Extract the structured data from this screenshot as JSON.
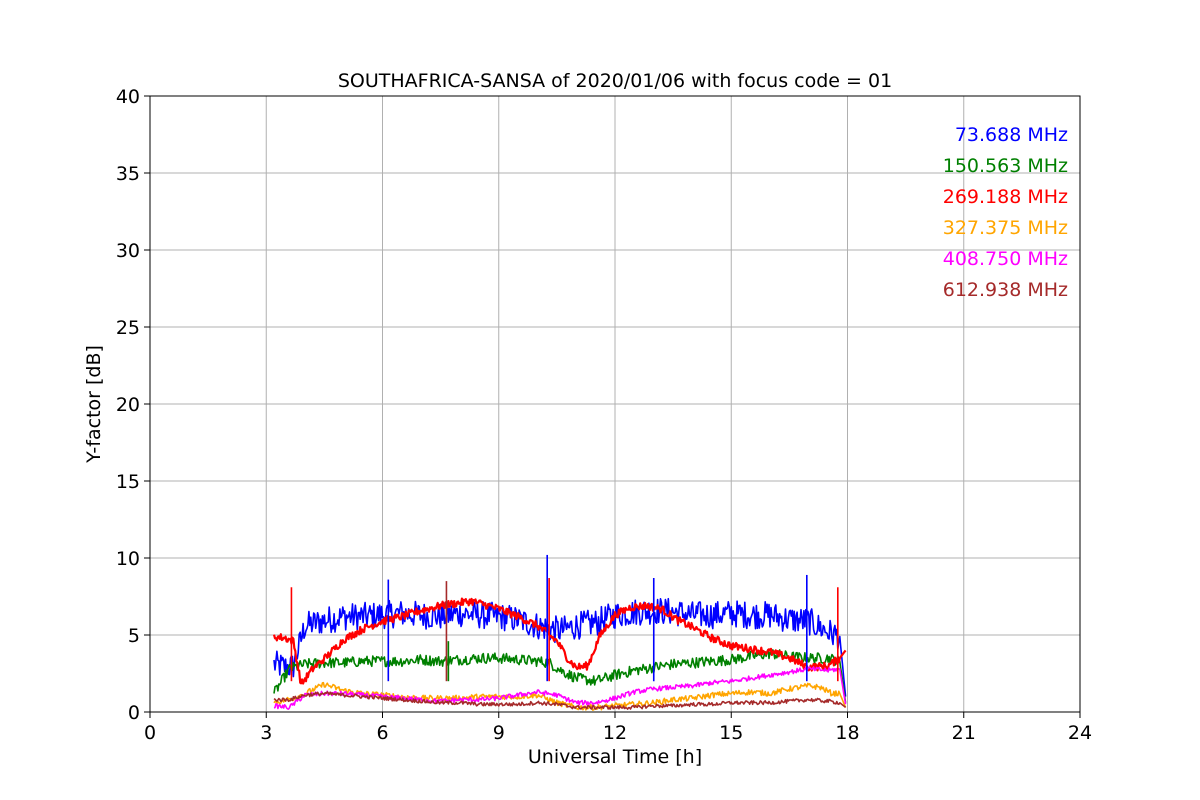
{
  "chart_data": {
    "type": "line",
    "title": "SOUTHAFRICA-SANSA of 2020/01/06 with focus code = 01",
    "xlabel": "Universal Time [h]",
    "ylabel": "Y-factor [dB]",
    "xlim": [
      0,
      24
    ],
    "ylim": [
      0,
      40
    ],
    "xticks": [
      0,
      3,
      6,
      9,
      12,
      15,
      18,
      21,
      24
    ],
    "yticks": [
      0,
      5,
      10,
      15,
      20,
      25,
      30,
      35,
      40
    ],
    "grid": true,
    "legend_placement": "top-right",
    "series": [
      {
        "name": "73.688 MHz",
        "color": "#0000ff",
        "x": [
          3.2,
          3.5,
          3.7,
          4.0,
          4.3,
          4.6,
          5.0,
          5.5,
          6.0,
          6.5,
          7.0,
          7.5,
          8.0,
          8.5,
          9.0,
          9.5,
          10.0,
          10.3,
          10.6,
          11.0,
          11.5,
          12.0,
          12.5,
          13.0,
          13.5,
          14.0,
          14.5,
          15.0,
          15.5,
          16.0,
          16.5,
          17.0,
          17.5,
          17.8,
          17.95
        ],
        "y": [
          3.1,
          2.9,
          3.0,
          5.6,
          5.8,
          6.0,
          6.2,
          6.2,
          6.3,
          6.4,
          6.3,
          6.2,
          6.4,
          6.3,
          6.2,
          6.0,
          5.6,
          5.4,
          5.3,
          5.6,
          5.8,
          6.3,
          6.5,
          6.6,
          6.5,
          6.3,
          6.3,
          6.4,
          6.3,
          6.3,
          6.0,
          5.9,
          5.2,
          4.9,
          1.0
        ]
      },
      {
        "name": "150.563 MHz",
        "color": "#008000",
        "x": [
          3.2,
          3.6,
          4.0,
          4.5,
          5.0,
          5.5,
          6.0,
          6.5,
          7.0,
          7.5,
          8.0,
          8.5,
          9.0,
          9.5,
          10.0,
          10.3,
          10.6,
          11.0,
          11.5,
          12.0,
          12.5,
          13.0,
          13.5,
          14.0,
          14.5,
          15.0,
          15.5,
          16.0,
          16.5,
          17.0,
          17.5,
          17.8,
          17.95
        ],
        "y": [
          1.2,
          2.8,
          3.1,
          3.2,
          3.2,
          3.3,
          3.3,
          3.3,
          3.4,
          3.3,
          3.4,
          3.5,
          3.5,
          3.4,
          3.3,
          3.2,
          2.7,
          2.2,
          2.0,
          2.4,
          2.7,
          2.9,
          3.1,
          3.2,
          3.3,
          3.4,
          3.6,
          3.8,
          3.6,
          3.5,
          3.5,
          3.3,
          0.6
        ]
      },
      {
        "name": "269.188 MHz",
        "color": "#ff0000",
        "x": [
          3.2,
          3.5,
          3.7,
          3.9,
          4.2,
          4.6,
          5.0,
          5.5,
          6.0,
          6.5,
          7.0,
          7.5,
          8.0,
          8.3,
          8.6,
          9.0,
          9.5,
          10.0,
          10.5,
          10.8,
          11.0,
          11.3,
          11.6,
          12.0,
          12.4,
          12.8,
          13.2,
          13.6,
          14.0,
          14.5,
          15.0,
          15.5,
          16.0,
          16.5,
          17.0,
          17.5,
          17.8,
          17.95
        ],
        "y": [
          4.9,
          4.8,
          4.6,
          1.8,
          2.8,
          3.7,
          4.7,
          5.4,
          5.9,
          6.2,
          6.6,
          6.9,
          7.1,
          7.2,
          7.0,
          6.7,
          6.2,
          5.6,
          4.6,
          3.4,
          2.9,
          3.0,
          4.9,
          6.3,
          6.8,
          6.9,
          6.7,
          6.0,
          5.5,
          4.8,
          4.3,
          4.1,
          3.9,
          3.5,
          2.9,
          3.0,
          3.5,
          4.0
        ]
      },
      {
        "name": "327.375 MHz",
        "color": "#ffa500",
        "x": [
          3.2,
          3.7,
          4.0,
          4.5,
          5.0,
          5.5,
          6.0,
          6.5,
          7.0,
          7.5,
          8.0,
          8.5,
          9.0,
          9.5,
          10.0,
          10.5,
          11.0,
          11.5,
          12.0,
          12.5,
          13.0,
          13.5,
          14.0,
          14.5,
          15.0,
          15.5,
          16.0,
          16.5,
          17.0,
          17.3,
          17.6,
          17.8,
          17.95
        ],
        "y": [
          0.6,
          0.9,
          1.2,
          1.8,
          1.4,
          1.2,
          1.1,
          1.0,
          0.9,
          0.9,
          0.9,
          1.0,
          1.0,
          1.0,
          1.1,
          0.6,
          0.3,
          0.3,
          0.4,
          0.5,
          0.6,
          0.8,
          0.9,
          1.1,
          1.2,
          1.3,
          1.2,
          1.5,
          1.7,
          1.6,
          1.2,
          1.2,
          0.3
        ]
      },
      {
        "name": "408.750 MHz",
        "color": "#ff00ff",
        "x": [
          3.2,
          3.6,
          4.0,
          4.5,
          5.0,
          5.5,
          6.0,
          6.5,
          7.0,
          7.5,
          8.0,
          8.5,
          9.0,
          9.5,
          10.0,
          10.5,
          11.0,
          11.5,
          12.0,
          12.5,
          13.0,
          13.5,
          14.0,
          14.5,
          15.0,
          15.5,
          16.0,
          16.5,
          17.0,
          17.5,
          17.8,
          17.95
        ],
        "y": [
          0.4,
          0.3,
          1.1,
          1.2,
          1.2,
          1.1,
          1.0,
          0.9,
          0.8,
          0.7,
          0.8,
          0.8,
          0.9,
          1.1,
          1.3,
          1.1,
          0.6,
          0.6,
          0.9,
          1.3,
          1.5,
          1.6,
          1.7,
          1.9,
          2.0,
          2.2,
          2.4,
          2.6,
          2.8,
          2.7,
          2.8,
          0.5
        ]
      },
      {
        "name": "612.938 MHz",
        "color": "#a52a2a",
        "x": [
          3.2,
          3.6,
          4.0,
          4.5,
          5.0,
          5.5,
          6.0,
          6.5,
          7.0,
          7.5,
          8.0,
          8.5,
          9.0,
          9.5,
          10.0,
          10.5,
          11.0,
          11.5,
          12.0,
          12.5,
          13.0,
          13.5,
          14.0,
          14.5,
          15.0,
          15.5,
          16.0,
          16.5,
          17.0,
          17.5,
          17.8,
          17.95
        ],
        "y": [
          0.8,
          0.8,
          1.1,
          1.2,
          1.1,
          1.0,
          0.9,
          0.8,
          0.7,
          0.6,
          0.6,
          0.5,
          0.5,
          0.5,
          0.6,
          0.5,
          0.3,
          0.3,
          0.3,
          0.3,
          0.4,
          0.4,
          0.5,
          0.5,
          0.6,
          0.6,
          0.6,
          0.7,
          0.8,
          0.7,
          0.6,
          0.3
        ]
      }
    ],
    "spikes": [
      {
        "series": 2,
        "x": 3.65,
        "y": 8.1
      },
      {
        "series": 5,
        "x": 7.65,
        "y": 8.5
      },
      {
        "series": 1,
        "x": 7.7,
        "y": 4.6
      },
      {
        "series": 0,
        "x": 10.25,
        "y": 10.2
      },
      {
        "series": 2,
        "x": 10.3,
        "y": 8.7
      },
      {
        "series": 0,
        "x": 16.95,
        "y": 8.9
      },
      {
        "series": 2,
        "x": 17.75,
        "y": 8.1
      },
      {
        "series": 0,
        "x": 13.0,
        "y": 8.7
      },
      {
        "series": 0,
        "x": 6.15,
        "y": 8.6
      }
    ]
  }
}
